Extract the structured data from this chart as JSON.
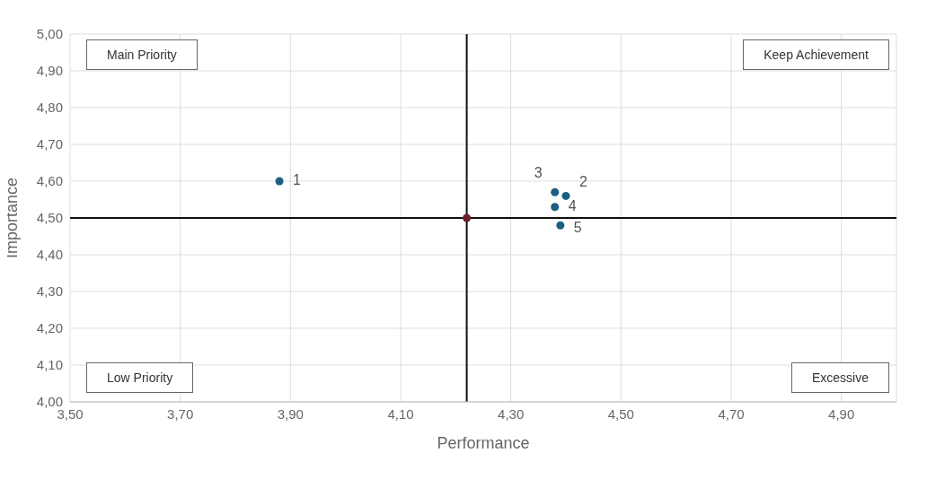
{
  "chart_data": {
    "type": "scatter",
    "xlabel": "Performance",
    "ylabel": "Importance",
    "annotations": [
      "Main Priority",
      "Keep Achievement",
      "Low Priority",
      "Excessive",
      {
        "text": "1",
        "x": 3.88,
        "y": 4.6
      },
      {
        "text": "2",
        "x": 4.4,
        "y": 4.56
      },
      {
        "text": "3",
        "x": 4.38,
        "y": 4.57
      },
      {
        "text": "4",
        "x": 4.38,
        "y": 4.53
      },
      {
        "text": "5",
        "x": 4.39,
        "y": 4.48
      }
    ],
    "series": [
      {
        "color": "#1b5f82",
        "x": [
          3.88,
          4.4,
          4.38,
          4.38,
          4.39
        ],
        "values": [
          4.6,
          4.56,
          4.57,
          4.53,
          4.48
        ]
      },
      {
        "color": "#6b1f2a",
        "x": [
          4.22
        ],
        "values": [
          4.5
        ]
      }
    ],
    "xlim": [
      3.5,
      5.0
    ],
    "xticks": [
      {
        "value": 3.5,
        "label": "3,50"
      },
      {
        "value": 3.7,
        "label": "3,70"
      },
      {
        "value": 3.9,
        "label": "3,90"
      },
      {
        "value": 4.1,
        "label": "4,10"
      },
      {
        "value": 4.3,
        "label": "4,30"
      },
      {
        "value": 4.5,
        "label": "4,50"
      },
      {
        "value": 4.7,
        "label": "4,70"
      },
      {
        "value": 4.9,
        "label": "4,90"
      }
    ],
    "ylim": [
      4.0,
      5.0
    ],
    "yticks": [
      {
        "value": 4.0,
        "label": "4,00"
      },
      {
        "value": 4.1,
        "label": "4,10"
      },
      {
        "value": 4.2,
        "label": "4,20"
      },
      {
        "value": 4.3,
        "label": "4,30"
      },
      {
        "value": 4.4,
        "label": "4,40"
      },
      {
        "value": 4.5,
        "label": "4,50"
      },
      {
        "value": 4.6,
        "label": "4,60"
      },
      {
        "value": 4.7,
        "label": "4,70"
      },
      {
        "value": 4.8,
        "label": "4,80"
      },
      {
        "value": 4.9,
        "label": "4,90"
      },
      {
        "value": 5.0,
        "label": "5,00"
      }
    ],
    "ref_lines": [
      {
        "axis": "x",
        "value": 4.22,
        "color": "#111111"
      },
      {
        "axis": "y",
        "value": 4.5,
        "color": "#111111"
      }
    ],
    "grid": true,
    "marker": "circle"
  }
}
